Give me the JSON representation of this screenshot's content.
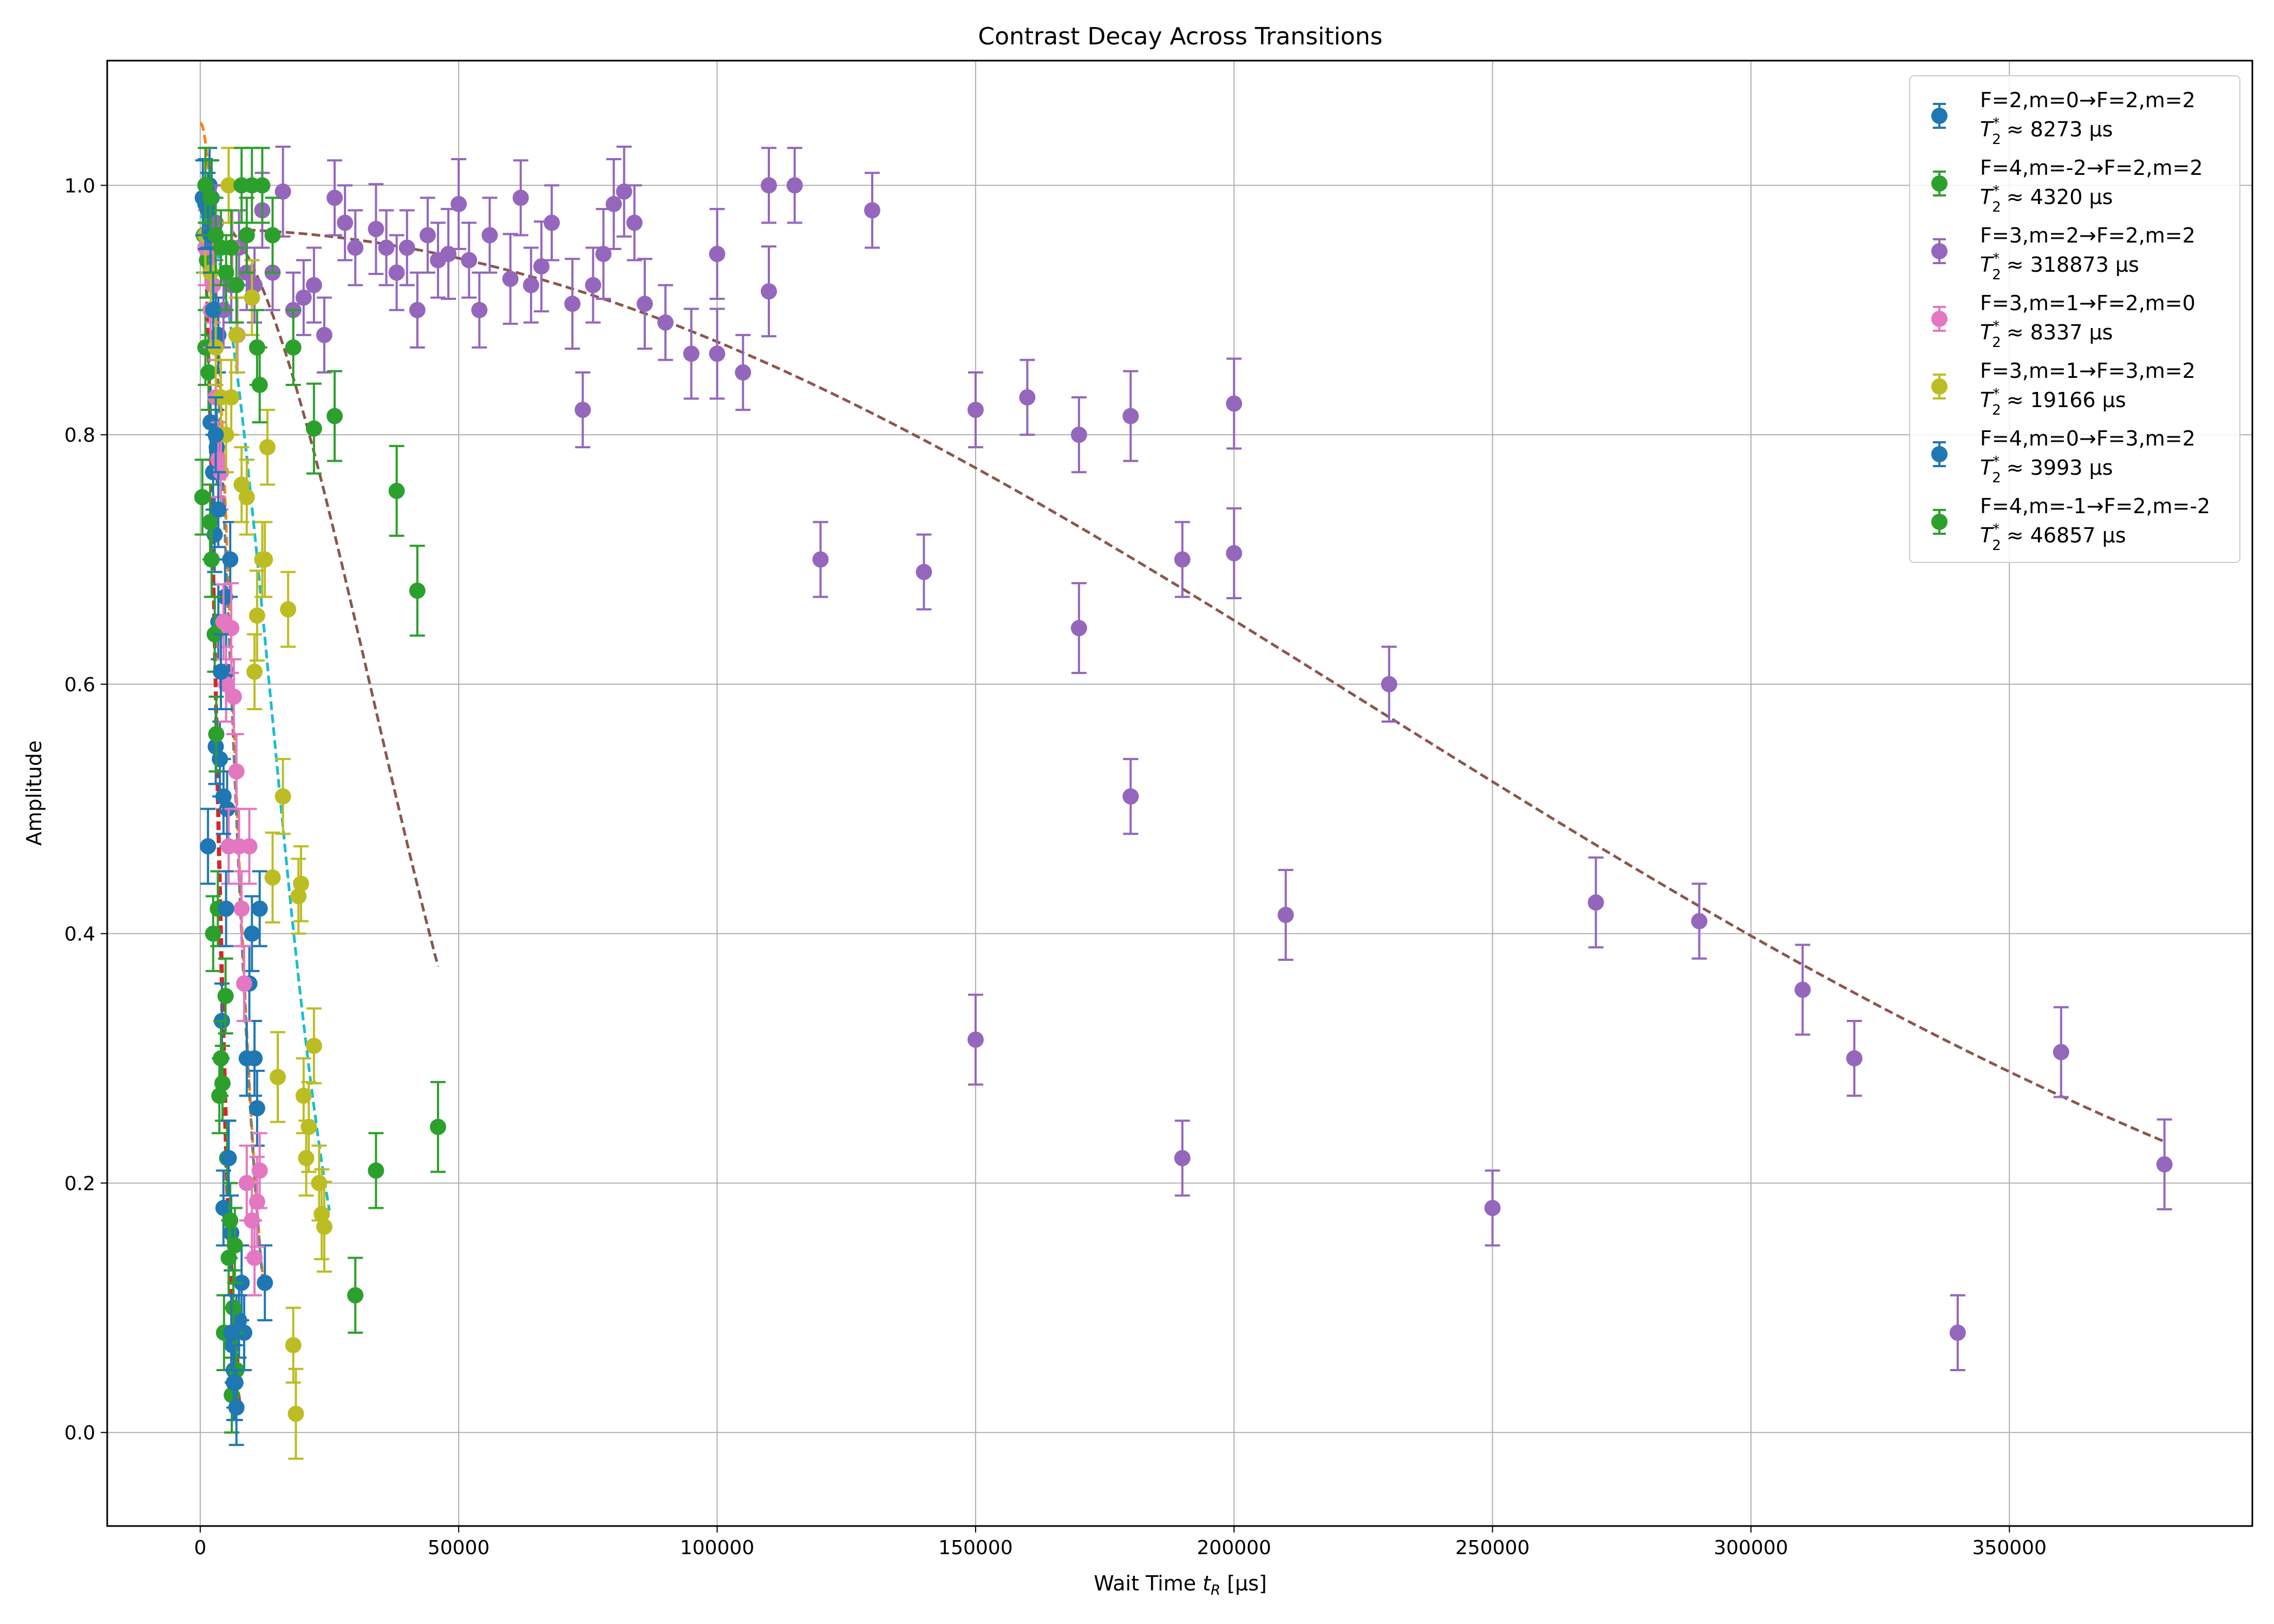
{
  "chart_data": {
    "type": "scatter",
    "title": "Contrast Decay Across Transitions",
    "xlabel_main": "Wait Time ",
    "xlabel_italic": "t",
    "xlabel_sub": "R",
    "xlabel_unit": " [μs]",
    "ylabel": "Amplitude",
    "xlim": [
      -18000,
      397000
    ],
    "ylim": [
      -0.075,
      1.1
    ],
    "xticks": [
      0,
      50000,
      100000,
      150000,
      200000,
      250000,
      300000,
      350000
    ],
    "xtick_labels": [
      "0",
      "50000",
      "100000",
      "150000",
      "200000",
      "250000",
      "300000",
      "350000"
    ],
    "yticks": [
      0.0,
      0.2,
      0.4,
      0.6,
      0.8,
      1.0
    ],
    "ytick_labels": [
      "0.0",
      "0.2",
      "0.4",
      "0.6",
      "0.8",
      "1.0"
    ],
    "grid": true,
    "legend_position": "top-right",
    "series": [
      {
        "name": "F=2,m=0→F=2,m=2",
        "t2_label": "≈ 8273 μs",
        "color": "#1f77b4",
        "points": [
          [
            1500,
            0.47
          ],
          [
            2000,
            0.81
          ],
          [
            2500,
            0.77
          ],
          [
            2800,
            0.72
          ],
          [
            3000,
            0.55
          ],
          [
            3200,
            0.79
          ],
          [
            3500,
            0.65
          ],
          [
            3800,
            0.54
          ],
          [
            4000,
            0.3
          ],
          [
            4200,
            0.33
          ],
          [
            4500,
            0.18
          ],
          [
            4800,
            0.67
          ],
          [
            5000,
            0.61
          ],
          [
            5200,
            0.5
          ],
          [
            5500,
            0.22
          ],
          [
            5800,
            0.7
          ],
          [
            6000,
            0.16
          ],
          [
            6200,
            0.07
          ],
          [
            6500,
            0.05
          ],
          [
            6800,
            0.04
          ],
          [
            7000,
            0.08
          ],
          [
            7500,
            0.09
          ],
          [
            8000,
            0.12
          ],
          [
            8500,
            0.08
          ],
          [
            9000,
            0.3
          ],
          [
            9500,
            0.36
          ],
          [
            10000,
            0.4
          ],
          [
            10500,
            0.3
          ],
          [
            11000,
            0.26
          ],
          [
            11500,
            0.42
          ],
          [
            12500,
            0.12
          ],
          [
            2200,
            0.99
          ],
          [
            1800,
            1.0
          ],
          [
            3000,
            0.9
          ],
          [
            3500,
            0.88
          ]
        ],
        "fit": {
          "T2": 8273,
          "A": 1.05,
          "n": 2,
          "xmax": 12000
        }
      },
      {
        "name": "F=4,m=-2→F=2,m=2",
        "t2_label": "≈ 4320 μs",
        "color": "#2ca02c",
        "points": [
          [
            400,
            0.75
          ],
          [
            700,
            0.96
          ],
          [
            1000,
            0.87
          ],
          [
            1300,
            0.94
          ],
          [
            1600,
            0.85
          ],
          [
            1900,
            0.73
          ],
          [
            2200,
            0.7
          ],
          [
            2500,
            0.4
          ],
          [
            2800,
            0.64
          ],
          [
            3100,
            0.56
          ],
          [
            3400,
            0.42
          ],
          [
            3700,
            0.27
          ],
          [
            4000,
            0.3
          ],
          [
            4300,
            0.28
          ],
          [
            4600,
            0.08
          ],
          [
            4900,
            0.35
          ],
          [
            5200,
            0.22
          ],
          [
            5500,
            0.14
          ],
          [
            5800,
            0.17
          ],
          [
            6100,
            0.03
          ],
          [
            6400,
            0.1
          ],
          [
            6700,
            0.15
          ],
          [
            7000,
            0.05
          ]
        ],
        "fit": {
          "T2": 4320,
          "A": 1.0,
          "n": 2,
          "xmax": 7500
        }
      },
      {
        "name": "F=3,m=2→F=2,m=2",
        "t2_label": "≈ 318873 μs",
        "color": "#9467bd",
        "points": [
          [
            3000,
            0.97
          ],
          [
            4500,
            0.9
          ],
          [
            6000,
            0.92
          ],
          [
            7500,
            0.95
          ],
          [
            9000,
            0.93
          ],
          [
            10500,
            0.92
          ],
          [
            12000,
            0.98
          ],
          [
            14000,
            0.93
          ],
          [
            16000,
            0.995
          ],
          [
            18000,
            0.9
          ],
          [
            20000,
            0.91
          ],
          [
            22000,
            0.92
          ],
          [
            24000,
            0.88
          ],
          [
            26000,
            0.99
          ],
          [
            28000,
            0.97
          ],
          [
            30000,
            0.95
          ],
          [
            34000,
            0.965
          ],
          [
            36000,
            0.95
          ],
          [
            38000,
            0.93
          ],
          [
            40000,
            0.95
          ],
          [
            42000,
            0.9
          ],
          [
            44000,
            0.96
          ],
          [
            46000,
            0.94
          ],
          [
            48000,
            0.945
          ],
          [
            50000,
            0.985
          ],
          [
            52000,
            0.94
          ],
          [
            54000,
            0.9
          ],
          [
            56000,
            0.96
          ],
          [
            60000,
            0.925
          ],
          [
            62000,
            0.99
          ],
          [
            64000,
            0.92
          ],
          [
            66000,
            0.935
          ],
          [
            68000,
            0.97
          ],
          [
            72000,
            0.905
          ],
          [
            74000,
            0.82
          ],
          [
            76000,
            0.92
          ],
          [
            78000,
            0.945
          ],
          [
            80000,
            0.985
          ],
          [
            82000,
            0.995
          ],
          [
            84000,
            0.97
          ],
          [
            86000,
            0.905
          ],
          [
            90000,
            0.89
          ],
          [
            95000,
            0.865
          ],
          [
            100000,
            0.865
          ],
          [
            100000,
            0.945
          ],
          [
            105000,
            0.85
          ],
          [
            110000,
            1.0
          ],
          [
            110000,
            0.915
          ],
          [
            115000,
            1.0
          ],
          [
            120000,
            0.7
          ],
          [
            130000,
            0.98
          ],
          [
            140000,
            0.69
          ],
          [
            150000,
            0.82
          ],
          [
            150000,
            0.315
          ],
          [
            160000,
            0.83
          ],
          [
            170000,
            0.8
          ],
          [
            170000,
            0.645
          ],
          [
            180000,
            0.815
          ],
          [
            180000,
            0.51
          ],
          [
            190000,
            0.7
          ],
          [
            190000,
            0.22
          ],
          [
            200000,
            0.825
          ],
          [
            200000,
            0.705
          ],
          [
            210000,
            0.415
          ],
          [
            230000,
            0.6
          ],
          [
            250000,
            0.18
          ],
          [
            270000,
            0.425
          ],
          [
            290000,
            0.41
          ],
          [
            310000,
            0.355
          ],
          [
            320000,
            0.3
          ],
          [
            340000,
            0.08
          ],
          [
            360000,
            0.305
          ],
          [
            380000,
            0.215
          ]
        ],
        "fit": {
          "T2": 318873,
          "A": 0.965,
          "n": 2,
          "xmin": 9000,
          "xmax": 380000
        }
      },
      {
        "name": "F=3,m=1→F=2,m=0",
        "t2_label": "≈ 8337 μs",
        "color": "#e377c2",
        "points": [
          [
            1000,
            0.95
          ],
          [
            2000,
            0.9
          ],
          [
            2500,
            0.92
          ],
          [
            3000,
            0.83
          ],
          [
            3500,
            0.78
          ],
          [
            4000,
            0.77
          ],
          [
            4500,
            0.65
          ],
          [
            5000,
            0.6
          ],
          [
            5500,
            0.47
          ],
          [
            6000,
            0.645
          ],
          [
            6500,
            0.59
          ],
          [
            7000,
            0.53
          ],
          [
            7500,
            0.47
          ],
          [
            8000,
            0.42
          ],
          [
            8500,
            0.36
          ],
          [
            9000,
            0.2
          ],
          [
            9500,
            0.47
          ],
          [
            10000,
            0.17
          ],
          [
            10500,
            0.14
          ],
          [
            11000,
            0.185
          ],
          [
            11500,
            0.21
          ],
          [
            6200,
            0.95
          ],
          [
            7200,
            0.88
          ]
        ],
        "fit": {
          "T2": 8337,
          "A": 1.0,
          "n": 2,
          "xmax": 12000
        }
      },
      {
        "name": "F=3,m=1→F=3,m=2",
        "t2_label": "≈ 19166 μs",
        "color": "#bcbd22",
        "points": [
          [
            1000,
            0.96
          ],
          [
            2000,
            0.93
          ],
          [
            3000,
            0.87
          ],
          [
            4000,
            0.83
          ],
          [
            5000,
            0.8
          ],
          [
            6000,
            0.83
          ],
          [
            7000,
            0.88
          ],
          [
            8000,
            0.76
          ],
          [
            9000,
            0.75
          ],
          [
            10000,
            0.91
          ],
          [
            10500,
            0.61
          ],
          [
            11000,
            0.655
          ],
          [
            12000,
            0.7
          ],
          [
            12500,
            0.7
          ],
          [
            13000,
            0.79
          ],
          [
            14000,
            0.445
          ],
          [
            15000,
            0.285
          ],
          [
            16000,
            0.51
          ],
          [
            17000,
            0.66
          ],
          [
            18000,
            0.07
          ],
          [
            18500,
            0.015
          ],
          [
            19000,
            0.43
          ],
          [
            19500,
            0.44
          ],
          [
            20000,
            0.27
          ],
          [
            20500,
            0.22
          ],
          [
            21000,
            0.245
          ],
          [
            22000,
            0.31
          ],
          [
            23000,
            0.2
          ],
          [
            23500,
            0.175
          ],
          [
            24000,
            0.165
          ],
          [
            5500,
            1.0
          ]
        ],
        "fit": {
          "T2": 19166,
          "A": 0.975,
          "n": 2,
          "xmax": 25000
        }
      },
      {
        "name": "F=4,m=0→F=3,m=2",
        "t2_label": "≈ 3993 μs",
        "color": "#1f77b4",
        "points": [
          [
            500,
            0.99
          ],
          [
            1000,
            0.985
          ],
          [
            1500,
            0.98
          ],
          [
            2000,
            0.96
          ],
          [
            2500,
            0.9
          ],
          [
            3000,
            0.8
          ],
          [
            3500,
            0.74
          ],
          [
            4000,
            0.61
          ],
          [
            4500,
            0.51
          ],
          [
            5000,
            0.42
          ],
          [
            5500,
            0.22
          ],
          [
            6000,
            0.08
          ],
          [
            6500,
            0.04
          ],
          [
            7000,
            0.02
          ]
        ],
        "fit": {
          "T2": 3993,
          "A": 1.0,
          "n": 2,
          "xmax": 8000
        }
      },
      {
        "name": "F=4,m=-1→F=2,m=-2",
        "t2_label": "≈ 46857 μs",
        "color": "#2ca02c",
        "points": [
          [
            1000,
            1.0
          ],
          [
            2000,
            0.99
          ],
          [
            3000,
            0.96
          ],
          [
            4000,
            0.95
          ],
          [
            5000,
            0.93
          ],
          [
            6000,
            0.95
          ],
          [
            7000,
            0.92
          ],
          [
            8000,
            1.0
          ],
          [
            9000,
            0.96
          ],
          [
            10000,
            1.0
          ],
          [
            11000,
            0.87
          ],
          [
            11500,
            0.84
          ],
          [
            12000,
            1.0
          ],
          [
            14000,
            0.96
          ],
          [
            18000,
            0.87
          ],
          [
            22000,
            0.805
          ],
          [
            26000,
            0.815
          ],
          [
            30000,
            0.11
          ],
          [
            34000,
            0.21
          ],
          [
            38000,
            0.755
          ],
          [
            42000,
            0.675
          ],
          [
            46000,
            0.245
          ]
        ],
        "fit": {
          "T2": 46857,
          "A": 0.98,
          "n": 2,
          "xmin": 6000,
          "xmax": 46000
        }
      }
    ],
    "fit_colors": [
      "#ff7f0e",
      "#d62728",
      "#8c564b",
      "#7f7f7f",
      "#17becf",
      "#d62728",
      "#8c564b"
    ],
    "legend_prefix": "T",
    "legend_sub": "2",
    "legend_sup": "*"
  }
}
